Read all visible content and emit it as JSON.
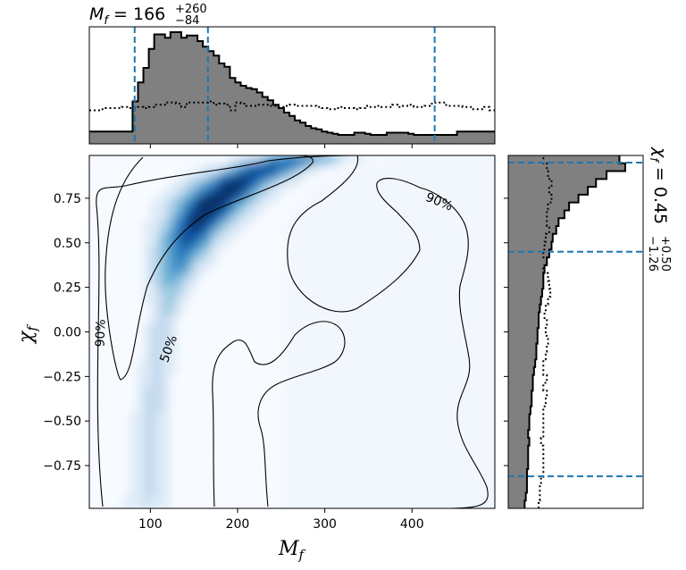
{
  "chart_data": [
    {
      "panel": "top-marginal",
      "type": "histogram",
      "variable": "M_f",
      "title": {
        "base": "M",
        "sub": "f",
        "eq": " = ",
        "median": "166",
        "plus": "+260",
        "minus": "−84"
      },
      "xlim": [
        30,
        495
      ],
      "quantile_lines": [
        82,
        166,
        426
      ],
      "posterior_bins": {
        "x0": 30,
        "width": 6.2,
        "values": [
          0.11,
          0.11,
          0.11,
          0.11,
          0.11,
          0.11,
          0.11,
          0.11,
          0.38,
          0.55,
          0.68,
          0.85,
          0.98,
          0.98,
          0.95,
          1.0,
          1.0,
          0.95,
          0.97,
          0.97,
          0.92,
          0.87,
          0.83,
          0.79,
          0.72,
          0.69,
          0.59,
          0.55,
          0.52,
          0.5,
          0.49,
          0.46,
          0.42,
          0.39,
          0.35,
          0.32,
          0.28,
          0.25,
          0.21,
          0.19,
          0.16,
          0.14,
          0.13,
          0.11,
          0.1,
          0.09,
          0.08,
          0.08,
          0.08,
          0.1,
          0.1,
          0.09,
          0.08,
          0.08,
          0.08,
          0.1,
          0.1,
          0.1,
          0.1,
          0.09,
          0.08,
          0.08,
          0.08,
          0.08,
          0.08,
          0.08,
          0.08,
          0.08,
          0.11,
          0.11,
          0.11,
          0.11,
          0.11,
          0.11,
          0.11
        ]
      },
      "prior_bins": {
        "x0": 30,
        "width": 6.2,
        "values": [
          0.3,
          0.3,
          0.31,
          0.32,
          0.32,
          0.32,
          0.33,
          0.32,
          0.32,
          0.33,
          0.32,
          0.33,
          0.35,
          0.35,
          0.37,
          0.37,
          0.36,
          0.33,
          0.37,
          0.37,
          0.37,
          0.37,
          0.38,
          0.35,
          0.36,
          0.35,
          0.3,
          0.37,
          0.36,
          0.34,
          0.34,
          0.35,
          0.35,
          0.34,
          0.34,
          0.33,
          0.34,
          0.35,
          0.34,
          0.34,
          0.34,
          0.34,
          0.33,
          0.32,
          0.31,
          0.31,
          0.33,
          0.32,
          0.32,
          0.31,
          0.32,
          0.34,
          0.33,
          0.34,
          0.33,
          0.33,
          0.35,
          0.33,
          0.34,
          0.35,
          0.33,
          0.33,
          0.34,
          0.36,
          0.37,
          0.37,
          0.34,
          0.34,
          0.34,
          0.33,
          0.33,
          0.31,
          0.31,
          0.33,
          0.3
        ]
      }
    },
    {
      "panel": "joint-density",
      "type": "heatmap",
      "xlabel": {
        "base": "M",
        "sub": "f"
      },
      "ylabel": {
        "base": "χ",
        "sub": "f"
      },
      "xlim": [
        30,
        495
      ],
      "ylim": [
        -0.99,
        0.99
      ],
      "xticks": [
        100,
        200,
        300,
        400
      ],
      "yticks": [
        0.75,
        0.5,
        0.25,
        0.0,
        -0.25,
        -0.5,
        -0.75
      ],
      "ytick_labels": [
        "0.75",
        "0.50",
        "0.25",
        "0.00",
        "−0.25",
        "−0.50",
        "−0.75"
      ],
      "xtick_labels": [
        "100",
        "200",
        "300",
        "400"
      ],
      "colormap": [
        "#f7fbff",
        "#deebf7",
        "#c6dbef",
        "#9ecae1",
        "#6baed6",
        "#4292c6",
        "#2171b5",
        "#08519c",
        "#08306b"
      ],
      "density_ridge": [
        [
          98,
          -0.99
        ],
        [
          100,
          -0.6
        ],
        [
          105,
          -0.3
        ],
        [
          112,
          0.0
        ],
        [
          125,
          0.3
        ],
        [
          145,
          0.55
        ],
        [
          170,
          0.72
        ],
        [
          200,
          0.85
        ],
        [
          235,
          0.93
        ],
        [
          270,
          0.97
        ]
      ],
      "contours": [
        {
          "level": "50%",
          "label_at": [
            92,
            -0.08
          ],
          "label_rotation": -70
        },
        {
          "level": "90%",
          "label_at": [
            14,
            -0.01
          ],
          "label_rotation": -88
        },
        {
          "level": "90%",
          "label_at": [
            390,
            0.73
          ],
          "label_rotation": 22
        }
      ]
    },
    {
      "panel": "right-marginal",
      "type": "histogram",
      "orientation": "horizontal",
      "variable": "chi_f",
      "title": {
        "base": "χ",
        "sub": "f",
        "eq": " = ",
        "median": "0.45",
        "plus": "+0.50",
        "minus": "−1.26"
      },
      "ylim": [
        -0.99,
        0.99
      ],
      "quantile_lines": [
        -0.81,
        0.45,
        0.95
      ],
      "posterior_bins": {
        "y0": -0.99,
        "height": 0.044,
        "values": [
          0.14,
          0.15,
          0.16,
          0.16,
          0.16,
          0.17,
          0.17,
          0.17,
          0.18,
          0.17,
          0.18,
          0.18,
          0.19,
          0.2,
          0.2,
          0.21,
          0.21,
          0.22,
          0.23,
          0.24,
          0.24,
          0.25,
          0.25,
          0.26,
          0.26,
          0.27,
          0.28,
          0.29,
          0.3,
          0.3,
          0.31,
          0.33,
          0.35,
          0.37,
          0.38,
          0.41,
          0.43,
          0.48,
          0.52,
          0.6,
          0.68,
          0.75,
          0.84,
          1.0,
          0.95
        ]
      },
      "prior_bins": {
        "y0": -0.99,
        "height": 0.044,
        "values": [
          0.26,
          0.27,
          0.27,
          0.28,
          0.3,
          0.3,
          0.3,
          0.3,
          0.28,
          0.3,
          0.3,
          0.3,
          0.3,
          0.32,
          0.33,
          0.3,
          0.33,
          0.3,
          0.3,
          0.32,
          0.33,
          0.34,
          0.32,
          0.33,
          0.31,
          0.32,
          0.34,
          0.36,
          0.35,
          0.34,
          0.3,
          0.33,
          0.3,
          0.31,
          0.32,
          0.35,
          0.33,
          0.33,
          0.34,
          0.37,
          0.35,
          0.37,
          0.34,
          0.33,
          0.3
        ]
      }
    }
  ]
}
